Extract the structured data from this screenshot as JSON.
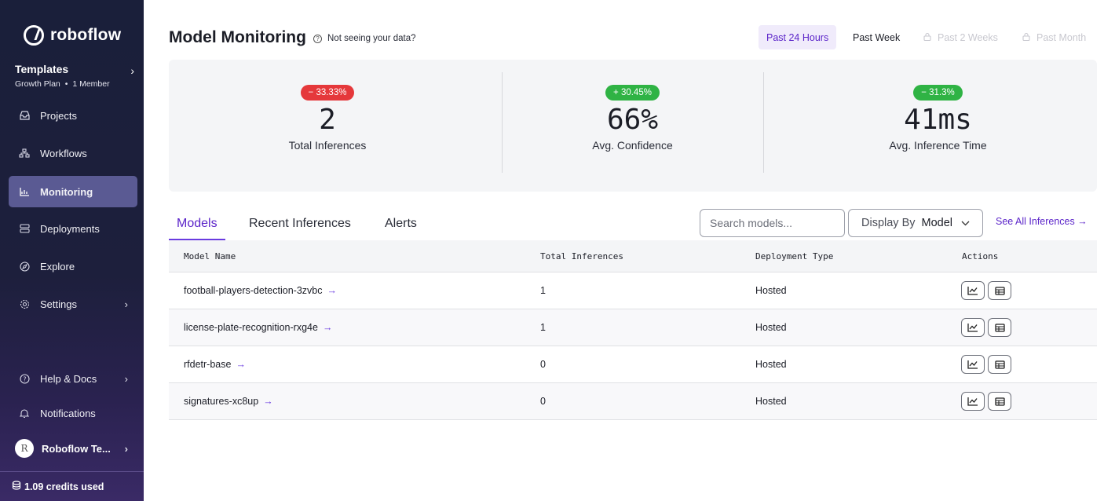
{
  "app": {
    "brand": "roboflow"
  },
  "workspace": {
    "name": "Templates",
    "plan": "Growth Plan",
    "separator": "•",
    "members": "1 Member"
  },
  "sidebar": {
    "items": [
      {
        "label": "Projects",
        "icon": "inbox-icon"
      },
      {
        "label": "Workflows",
        "icon": "workflow-icon"
      },
      {
        "label": "Monitoring",
        "icon": "chart-icon",
        "active": true
      },
      {
        "label": "Deployments",
        "icon": "server-icon"
      },
      {
        "label": "Explore",
        "icon": "compass-icon"
      },
      {
        "label": "Settings",
        "icon": "gear-icon"
      }
    ],
    "bottom": [
      {
        "label": "Help & Docs",
        "icon": "question-icon"
      },
      {
        "label": "Notifications",
        "icon": "bell-icon"
      }
    ],
    "user": {
      "initial": "R",
      "name": "Roboflow Te..."
    },
    "credits": "1.09 credits used"
  },
  "header": {
    "title": "Model Monitoring",
    "help": "Not seeing your data?",
    "ranges": [
      "Past 24 Hours",
      "Past Week",
      "Past 2 Weeks",
      "Past Month"
    ]
  },
  "stats": [
    {
      "badge": "− 33.33%",
      "value": "2",
      "label": "Total Inferences",
      "trend": "down"
    },
    {
      "badge": "+ 30.45%",
      "value": "66%",
      "label": "Avg. Confidence",
      "trend": "up"
    },
    {
      "badge": "− 31.3%",
      "value": "41ms",
      "label": "Avg. Inference Time",
      "trend": "down-good"
    }
  ],
  "tabs": [
    "Models",
    "Recent Inferences",
    "Alerts"
  ],
  "controls": {
    "search_placeholder": "Search models...",
    "display_by_label": "Display By",
    "display_by_value": "Model",
    "see_all": "See All Inferences →"
  },
  "table": {
    "headers": [
      "Model Name",
      "Total Inferences",
      "Deployment Type",
      "Actions"
    ],
    "rows": [
      {
        "name": "football-players-detection-3zvbc",
        "inferences": "1",
        "type": "Hosted"
      },
      {
        "name": "license-plate-recognition-rxg4e",
        "inferences": "1",
        "type": "Hosted"
      },
      {
        "name": "rfdetr-base",
        "inferences": "0",
        "type": "Hosted"
      },
      {
        "name": "signatures-xc8up",
        "inferences": "0",
        "type": "Hosted"
      }
    ]
  },
  "colors": {
    "accent": "#5b24c9",
    "negative": "#e5383b",
    "positive": "#2fb344"
  }
}
